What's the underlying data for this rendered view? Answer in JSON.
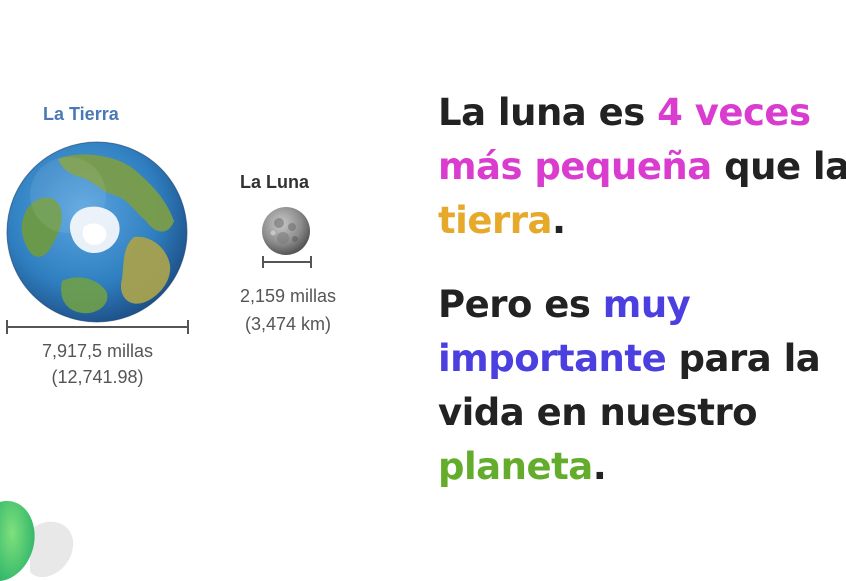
{
  "figure": {
    "earth": {
      "label": "La Tierra",
      "size_miles": "7,917,5 millas",
      "size_km": "(12,741.98)"
    },
    "moon": {
      "label": "La Luna",
      "size_miles": "2,159 millas",
      "size_km": "(3,474 km)"
    }
  },
  "text": {
    "block1": {
      "l1_a": "La luna es ",
      "l1_b": "4 veces",
      "l2_a": "más pequeña",
      "l2_b": " que la",
      "l3_a": "tierra",
      "l3_b": "."
    },
    "block2": {
      "l1_a": "Pero es ",
      "l1_b": "muy",
      "l2_a": "importante",
      "l2_b": " para la",
      "l3_a": "vida en nuestro",
      "l4_a": "planeta",
      "l4_b": "."
    }
  },
  "colors": {
    "pink": "#d93ccf",
    "yellow": "#e6a92a",
    "blue": "#4b3fe0",
    "green": "#64ad2c",
    "earth_label": "#4a7ab5"
  },
  "icons": {
    "earth": "earth-globe-icon",
    "moon": "moon-icon",
    "corner": "corner-decoration-icon"
  }
}
